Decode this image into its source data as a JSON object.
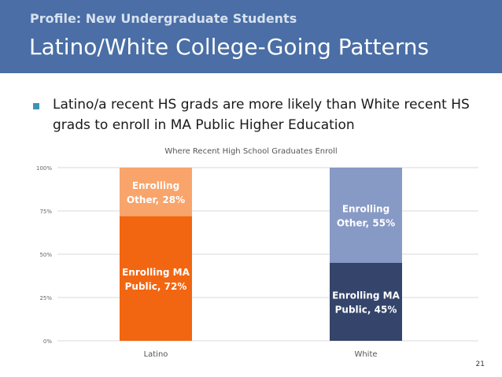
{
  "header": {
    "subtitle": "Profile: New Undergraduate Students",
    "title": "Latino/White College-Going Patterns"
  },
  "bullet": {
    "text": "Latino/a recent HS grads are more likely than White recent HS grads to enroll in MA Public Higher Education"
  },
  "page_number": "21",
  "colors": {
    "header_bg": "#4a6ea5",
    "latino_public": "#f26611",
    "latino_other": "#f8a46b",
    "white_public": "#34446b",
    "white_other": "#8799c5"
  },
  "chart_data": {
    "type": "bar",
    "stacked": true,
    "title": "Where Recent High School Graduates Enroll",
    "categories": [
      "Latino",
      "White"
    ],
    "ylim": [
      0,
      100
    ],
    "yticks": [
      "0%",
      "25%",
      "50%",
      "75%",
      "100%"
    ],
    "grid": true,
    "series": [
      {
        "values": [
          72,
          45
        ],
        "labels": [
          "Enrolling MA Public, 72%",
          "Enrolling MA Public, 45%"
        ]
      },
      {
        "values": [
          28,
          55
        ],
        "labels": [
          "Enrolling Other, 28%",
          "Enrolling Other, 55%"
        ]
      }
    ]
  }
}
